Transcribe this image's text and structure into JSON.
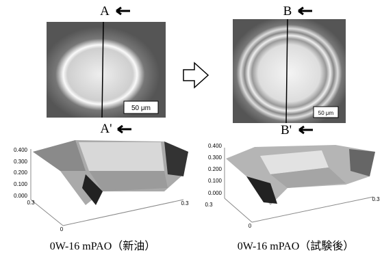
{
  "panels": [
    {
      "top_label": "A",
      "bottom_label": "A'",
      "scale_bar": "50 μm",
      "z_ticks": [
        "0.400",
        "0.300",
        "0.200",
        "0.100",
        "0.000"
      ],
      "axis_labels": [
        "0.3",
        "0",
        "0.3"
      ],
      "caption": "0W-16 mPAO（新油）"
    },
    {
      "top_label": "B",
      "bottom_label": "B'",
      "scale_bar": "50 μm",
      "z_ticks": [
        "0.400",
        "0.300",
        "0.200",
        "0.100",
        "0.000"
      ],
      "axis_labels": [
        "0.3",
        "0",
        "0.3"
      ],
      "caption": "0W-16 mPAO（試験後）"
    }
  ]
}
